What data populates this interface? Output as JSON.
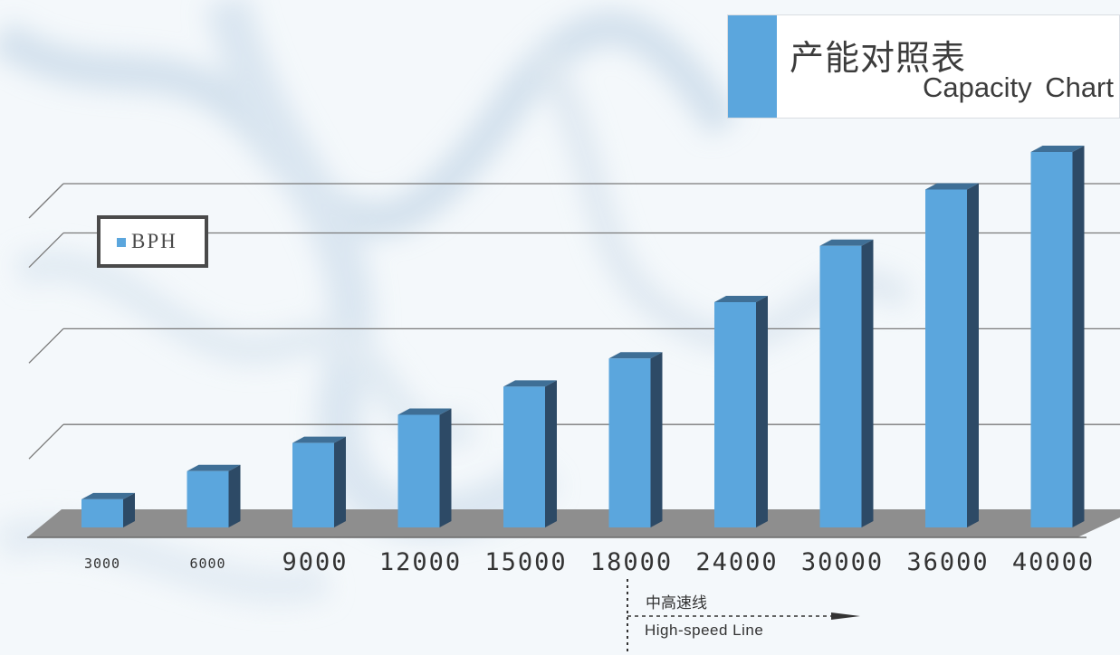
{
  "title": {
    "cn": "产能对照表",
    "en": "Capacity Chart"
  },
  "legend": {
    "label": "BPH"
  },
  "annotation": {
    "cn": "中高速线",
    "en": "High-speed Line"
  },
  "colors": {
    "bar_front": "#5ba6dd",
    "bar_side": "#2d4a66",
    "bar_top": "#3f6f96",
    "floor": "#8e8e8e",
    "gridline": "#7a7a7a",
    "label_text": "#333333"
  },
  "chart_data": {
    "type": "bar",
    "categories": [
      "3000",
      "6000",
      "9000",
      "12000",
      "15000",
      "18000",
      "24000",
      "30000",
      "36000",
      "40000"
    ],
    "series": [
      {
        "name": "BPH",
        "values": [
          3000,
          6000,
          9000,
          12000,
          15000,
          18000,
          24000,
          30000,
          36000,
          40000
        ]
      }
    ],
    "title": "产能对照表",
    "xlabel": "",
    "ylabel": "",
    "ylim": [
      0,
      40000
    ],
    "grid": true,
    "legend_position": "top-left"
  }
}
